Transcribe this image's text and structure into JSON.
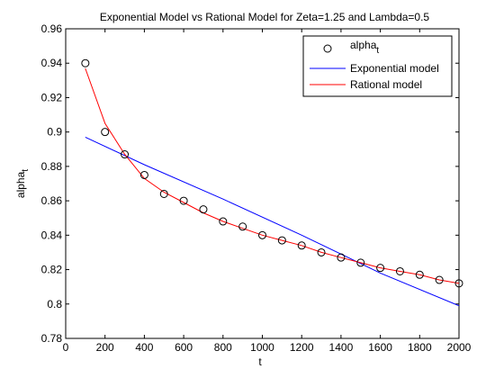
{
  "chart_data": {
    "type": "line",
    "title": "Exponential Model vs Rational Model for Zeta=1.25 and Lambda=0.5",
    "xlabel": "t",
    "ylabel": "alpha_t",
    "xlim": [
      0,
      2000
    ],
    "ylim": [
      0.78,
      0.96
    ],
    "xticks": [
      0,
      200,
      400,
      600,
      800,
      1000,
      1200,
      1400,
      1600,
      1800,
      2000
    ],
    "xtick_labels": [
      "0",
      "200",
      "400",
      "600",
      "800",
      "1000",
      "1200",
      "1400",
      "1600",
      "1800",
      "2000"
    ],
    "yticks": [
      0.78,
      0.8,
      0.82,
      0.84,
      0.86,
      0.88,
      0.9,
      0.92,
      0.94,
      0.96
    ],
    "ytick_labels": [
      "0.78",
      "0.8",
      "0.82",
      "0.84",
      "0.86",
      "0.88",
      "0.9",
      "0.92",
      "0.94",
      "0.96"
    ],
    "grid": false,
    "legend_position": "top-right",
    "series": [
      {
        "name": "alpha_t",
        "style": "markers",
        "marker": "circle",
        "color": "#000000",
        "x": [
          100,
          200,
          300,
          400,
          500,
          600,
          700,
          800,
          900,
          1000,
          1100,
          1200,
          1300,
          1400,
          1500,
          1600,
          1700,
          1800,
          1900,
          2000
        ],
        "y": [
          0.94,
          0.9,
          0.887,
          0.875,
          0.864,
          0.86,
          0.855,
          0.848,
          0.845,
          0.84,
          0.837,
          0.834,
          0.83,
          0.827,
          0.824,
          0.821,
          0.819,
          0.817,
          0.814,
          0.812
        ]
      },
      {
        "name": "Exponential model",
        "style": "line",
        "color": "#0000ff",
        "x": [
          100,
          400,
          800,
          1200,
          1600,
          2000
        ],
        "y": [
          0.897,
          0.881,
          0.861,
          0.84,
          0.818,
          0.799
        ]
      },
      {
        "name": "Rational model",
        "style": "line",
        "color": "#ff0000",
        "x": [
          100,
          200,
          300,
          400,
          500,
          600,
          700,
          800,
          900,
          1000,
          1100,
          1200,
          1300,
          1400,
          1500,
          1600,
          1700,
          1800,
          1900,
          2000
        ],
        "y": [
          0.937,
          0.905,
          0.887,
          0.873,
          0.865,
          0.859,
          0.853,
          0.848,
          0.844,
          0.84,
          0.837,
          0.834,
          0.83,
          0.827,
          0.824,
          0.821,
          0.819,
          0.817,
          0.814,
          0.812
        ]
      }
    ]
  }
}
